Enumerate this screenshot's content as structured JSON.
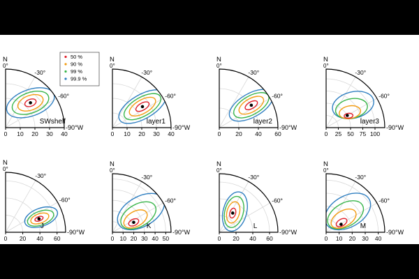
{
  "chart_data": [
    {
      "type": "polar-contour",
      "panel_label": "SWshelf",
      "north_label": "N",
      "north_sub": "0°",
      "azimuth_labels": [
        "-30°",
        "-60°",
        "-90°W"
      ],
      "radial_ticks": [
        0,
        10,
        20,
        30,
        40
      ],
      "r_max": 40,
      "legend": [
        {
          "label": "50 %",
          "color": "#e0202b"
        },
        {
          "label": "90 %",
          "color": "#f39c12"
        },
        {
          "label": "99 %",
          "color": "#39b54a"
        },
        {
          "label": "99.9 %",
          "color": "#2f7fc1"
        }
      ],
      "center": {
        "az": -45,
        "r": 24
      },
      "contours": [
        {
          "level": "50 %",
          "az": -45,
          "r": 24,
          "semi_major": 4,
          "semi_minor": 2.4,
          "tilt": 20
        },
        {
          "level": "90 %",
          "az": -45,
          "r": 24,
          "semi_major": 9,
          "semi_minor": 5,
          "tilt": 20
        },
        {
          "level": "99 %",
          "az": -45,
          "r": 24,
          "semi_major": 13,
          "semi_minor": 7,
          "tilt": 20
        },
        {
          "level": "99.9 %",
          "az": -45,
          "r": 24,
          "semi_major": 17,
          "semi_minor": 9,
          "tilt": 20
        }
      ]
    },
    {
      "type": "polar-contour",
      "panel_label": "layer1",
      "north_label": "N",
      "north_sub": "0°",
      "azimuth_labels": [
        "-30°",
        "-60°",
        "-90°W"
      ],
      "radial_ticks": [
        0,
        10,
        20,
        30,
        40
      ],
      "r_max": 40,
      "center": {
        "az": -55,
        "r": 25
      },
      "contours": [
        {
          "level": "50 %",
          "az": -55,
          "r": 25,
          "semi_major": 5,
          "semi_minor": 2.4,
          "tilt": 30
        },
        {
          "level": "90 %",
          "az": -55,
          "r": 25,
          "semi_major": 10,
          "semi_minor": 4.6,
          "tilt": 30
        },
        {
          "level": "99 %",
          "az": -55,
          "r": 25,
          "semi_major": 14,
          "semi_minor": 6.4,
          "tilt": 30
        },
        {
          "level": "99.9 %",
          "az": -55,
          "r": 25,
          "semi_major": 18,
          "semi_minor": 8.2,
          "tilt": 30
        }
      ]
    },
    {
      "type": "polar-contour",
      "panel_label": "layer2",
      "north_label": "N",
      "north_sub": "0°",
      "azimuth_labels": [
        "-30°",
        "-60°",
        "-90°W"
      ],
      "radial_ticks": [
        0,
        20,
        40,
        60
      ],
      "r_max": 60,
      "center": {
        "az": -55,
        "r": 40
      },
      "contours": [
        {
          "level": "50 %",
          "az": -55,
          "r": 40,
          "semi_major": 7,
          "semi_minor": 3.4,
          "tilt": 30
        },
        {
          "level": "90 %",
          "az": -55,
          "r": 40,
          "semi_major": 14,
          "semi_minor": 6.8,
          "tilt": 30
        },
        {
          "level": "99 %",
          "az": -55,
          "r": 40,
          "semi_major": 20,
          "semi_minor": 9.5,
          "tilt": 30
        },
        {
          "level": "99.9 %",
          "az": -55,
          "r": 40,
          "semi_major": 25,
          "semi_minor": 12,
          "tilt": 30
        }
      ]
    },
    {
      "type": "polar-contour",
      "panel_label": "layer3",
      "north_label": "N",
      "north_sub": "0°",
      "azimuth_labels": [
        "-30°",
        "-60°",
        "-90°W"
      ],
      "radial_ticks": [
        0,
        25,
        50,
        75,
        100
      ],
      "r_max": 120,
      "center": {
        "az": -60,
        "r": 50
      },
      "contours": [
        {
          "level": "50 %",
          "az": -62,
          "r": 52,
          "semi_major": 9,
          "semi_minor": 5,
          "tilt": 5
        },
        {
          "level": "90 %",
          "az": -57,
          "r": 58,
          "semi_major": 22,
          "semi_minor": 13,
          "tilt": 10
        },
        {
          "level": "99 %",
          "az": -53,
          "r": 65,
          "semi_major": 33,
          "semi_minor": 20,
          "tilt": 12
        },
        {
          "level": "99.9 %",
          "az": -50,
          "r": 72,
          "semi_major": 43,
          "semi_minor": 27,
          "tilt": 14
        }
      ]
    },
    {
      "type": "polar-contour",
      "panel_label": "J",
      "north_label": "N",
      "north_sub": "0°",
      "azimuth_labels": [
        "-30°",
        "-60°",
        "-90°W"
      ],
      "radial_ticks": [
        0,
        20,
        40,
        60
      ],
      "r_max": 70,
      "center": {
        "az": -68,
        "r": 42
      },
      "contours": [
        {
          "level": "50 %",
          "az": -68,
          "r": 42,
          "semi_major": 5,
          "semi_minor": 2.5,
          "tilt": 20
        },
        {
          "level": "90 %",
          "az": -68,
          "r": 43,
          "semi_major": 11,
          "semi_minor": 5.5,
          "tilt": 20
        },
        {
          "level": "99 %",
          "az": -68,
          "r": 44,
          "semi_major": 16,
          "semi_minor": 8,
          "tilt": 20
        },
        {
          "level": "99.9 %",
          "az": -67,
          "r": 45,
          "semi_major": 20,
          "semi_minor": 10.5,
          "tilt": 20
        }
      ]
    },
    {
      "type": "polar-contour",
      "panel_label": "K",
      "north_label": "N",
      "north_sub": "0°",
      "azimuth_labels": [
        "-30°",
        "-60°",
        "-90°W"
      ],
      "radial_ticks": [
        0,
        10,
        20,
        30,
        40,
        50
      ],
      "r_max": 55,
      "center": {
        "az": -65,
        "r": 22
      },
      "contours": [
        {
          "level": "50 %",
          "az": -65,
          "r": 22,
          "semi_major": 5,
          "semi_minor": 3,
          "tilt": 25
        },
        {
          "level": "90 %",
          "az": -60,
          "r": 25,
          "semi_major": 12,
          "semi_minor": 7,
          "tilt": 30
        },
        {
          "level": "99 %",
          "az": -57,
          "r": 29,
          "semi_major": 18,
          "semi_minor": 10.5,
          "tilt": 30
        },
        {
          "level": "99.9 %",
          "az": -54,
          "r": 33,
          "semi_major": 24,
          "semi_minor": 14,
          "tilt": 30
        }
      ]
    },
    {
      "type": "polar-contour",
      "panel_label": "L",
      "north_label": "N",
      "north_sub": "0°",
      "azimuth_labels": [
        "-30°",
        "-60°",
        "-90°W"
      ],
      "radial_ticks": [
        0,
        20,
        40,
        60
      ],
      "r_max": 70,
      "center": {
        "az": -35,
        "r": 28
      },
      "contours": [
        {
          "level": "50 %",
          "az": -35,
          "r": 28,
          "semi_major": 6,
          "semi_minor": 3.5,
          "tilt": 75
        },
        {
          "level": "90 %",
          "az": -35,
          "r": 29,
          "semi_major": 13,
          "semi_minor": 7.5,
          "tilt": 75
        },
        {
          "level": "99 %",
          "az": -36,
          "r": 30,
          "semi_major": 19,
          "semi_minor": 11,
          "tilt": 75
        },
        {
          "level": "99.9 %",
          "az": -37,
          "r": 31,
          "semi_major": 24,
          "semi_minor": 14,
          "tilt": 75
        }
      ]
    },
    {
      "type": "polar-contour",
      "panel_label": "M",
      "north_label": "N",
      "north_sub": "0°",
      "azimuth_labels": [
        "-30°",
        "-60°",
        "-90°W"
      ],
      "radial_ticks": [
        0,
        10,
        20,
        30,
        40
      ],
      "r_max": 45,
      "center": {
        "az": -62,
        "r": 13
      },
      "contours": [
        {
          "level": "50 %",
          "az": -58,
          "r": 14,
          "semi_major": 4.5,
          "semi_minor": 2.6,
          "tilt": 30
        },
        {
          "level": "90 %",
          "az": -52,
          "r": 17,
          "semi_major": 10.5,
          "semi_minor": 6,
          "tilt": 30
        },
        {
          "level": "99 %",
          "az": -48,
          "r": 20,
          "semi_major": 15,
          "semi_minor": 9,
          "tilt": 30
        },
        {
          "level": "99.9 %",
          "az": -46,
          "r": 23,
          "semi_major": 19,
          "semi_minor": 12,
          "tilt": 30
        }
      ]
    }
  ],
  "colors": {
    "50 %": "#e0202b",
    "90 %": "#f39c12",
    "99 %": "#39b54a",
    "99.9 %": "#2f7fc1",
    "grid": "#d9d9d9",
    "frame": "#000000",
    "point": "#000000"
  }
}
